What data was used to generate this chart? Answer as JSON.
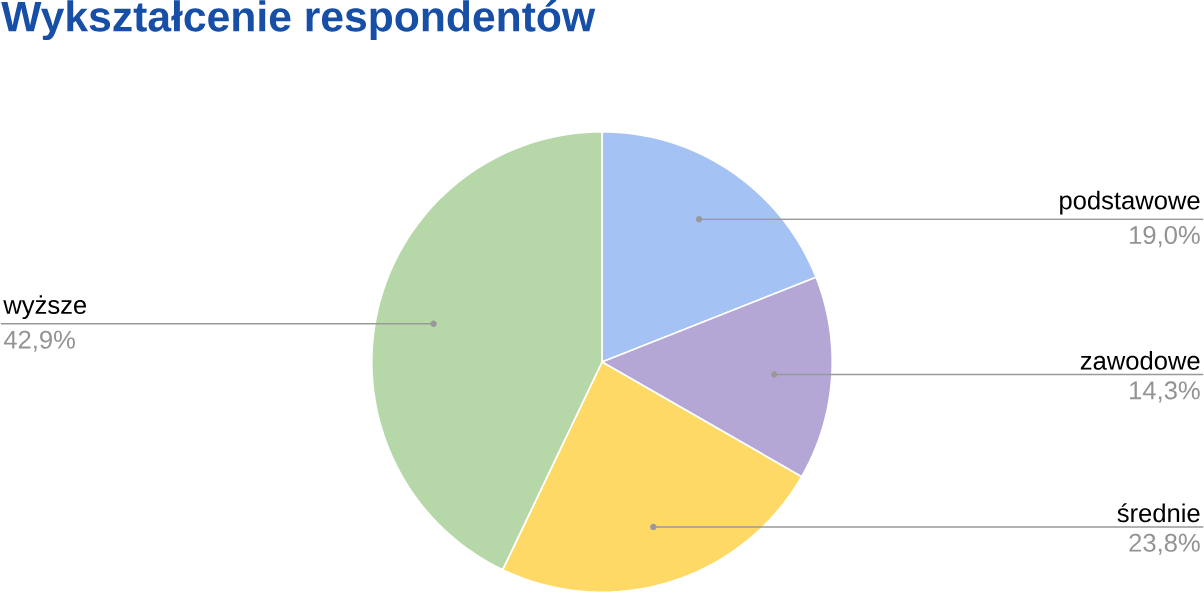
{
  "chart_data": {
    "type": "pie",
    "title": "Wykształcenie respondentów",
    "categories": [
      "podstawowe",
      "zawodowe",
      "średnie",
      "wyższe"
    ],
    "values": [
      19.0,
      14.3,
      23.8,
      42.9
    ],
    "value_labels": [
      "19,0%",
      "14,3%",
      "23,8%",
      "42,9%"
    ],
    "colors": [
      "#a4c2f4",
      "#b4a7d6",
      "#ffd966",
      "#b6d7a8"
    ]
  }
}
